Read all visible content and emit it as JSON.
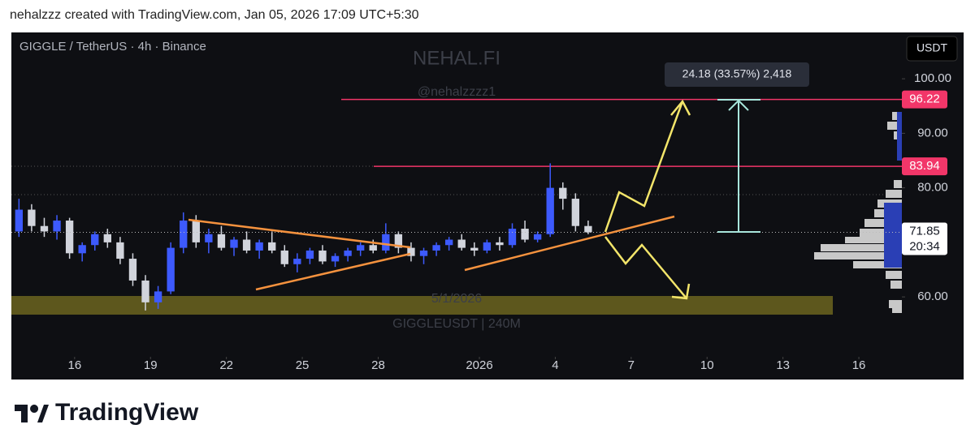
{
  "header": {
    "attribution": "nehalzzz created with TradingView.com, Jan 05, 2026 17:09 UTC+5:30"
  },
  "footer": {
    "brand": "TradingView"
  },
  "chart_data": {
    "type": "candlestick",
    "symbol": "GIGGLE / TetherUS · 4h · Binance",
    "currency_button": "USDT",
    "watermarks": [
      "NEHAL.FI",
      "@nehalzzzz1",
      "5/1/2026",
      "GIGGLEUSDT | 240M"
    ],
    "measure_label": "24.18 (33.57%) 2,418",
    "up_color": "#3d5afe",
    "down_color": "#d1d4dc",
    "x": [
      13.8,
      14.3,
      14.8,
      15.3,
      15.8,
      16.3,
      16.8,
      17.3,
      17.8,
      18.3,
      18.8,
      19.3,
      19.8,
      20.3,
      20.8,
      21.3,
      21.8,
      22.3,
      22.8,
      23.3,
      23.8,
      24.3,
      24.8,
      25.3,
      25.8,
      26.3,
      26.8,
      27.3,
      27.8,
      28.3,
      28.8,
      29.3,
      29.8,
      30.3,
      30.8,
      31.3,
      31.8,
      32.3,
      32.8,
      33.3,
      33.8,
      34.3,
      34.8,
      35.3,
      35.8,
      36.3
    ],
    "open": [
      72,
      76,
      73,
      72,
      74,
      68,
      69.5,
      71.5,
      70,
      67,
      63,
      59,
      61,
      69,
      74,
      70,
      71.5,
      69,
      70.5,
      68.5,
      70,
      68.5,
      66,
      67,
      68.5,
      66.5,
      67.5,
      68.5,
      69.5,
      68.5,
      71.5,
      69,
      67.5,
      68.5,
      69.5,
      70.5,
      69,
      68.5,
      70,
      69.5,
      72.5,
      70.5,
      71.5,
      80,
      78,
      73
    ],
    "high": [
      78,
      77,
      74.5,
      75,
      74.5,
      70,
      72,
      72.5,
      71,
      68,
      64,
      62,
      70,
      75.5,
      75,
      72.5,
      73,
      71,
      72,
      70.5,
      72,
      69.5,
      68,
      69,
      69.5,
      68,
      69,
      70,
      70.5,
      73.5,
      72,
      70,
      69,
      70,
      71,
      71.5,
      70,
      70.5,
      71,
      73.5,
      74,
      72,
      84.5,
      81,
      79,
      74
    ],
    "low": [
      71,
      72,
      71,
      70.5,
      67,
      66.5,
      68.5,
      69,
      66,
      62,
      57.5,
      57.8,
      60.5,
      68,
      69,
      68,
      68.5,
      67.5,
      68,
      67,
      68,
      65.5,
      64.5,
      66,
      66,
      65.5,
      66.5,
      67.5,
      68,
      68,
      68,
      66.5,
      66,
      67.5,
      68.5,
      68.5,
      67.5,
      68,
      68.5,
      69,
      70,
      70,
      71,
      76,
      72,
      71.5
    ],
    "close": [
      76,
      73,
      72,
      74,
      68,
      69.5,
      71.5,
      70,
      67,
      63,
      59,
      61,
      69,
      74,
      70,
      71.5,
      69,
      70.5,
      68.5,
      70,
      68.5,
      66,
      67,
      68.5,
      66.5,
      67.5,
      68.5,
      69.5,
      68.5,
      71.5,
      69,
      67.5,
      68.5,
      69.5,
      70.5,
      69,
      68.5,
      70,
      69.5,
      72.5,
      70.5,
      71.5,
      80,
      78,
      73,
      71.85
    ],
    "xlim": [
      13.5,
      48.7
    ],
    "xticks": [
      16,
      19,
      22,
      25,
      28,
      {
        "value": 32,
        "label": "2026"
      },
      {
        "value": 35,
        "label": "4"
      },
      {
        "value": 38,
        "label": "7"
      },
      {
        "value": 41,
        "label": "10"
      },
      {
        "value": 44,
        "label": "13"
      },
      {
        "value": 47,
        "label": "16"
      }
    ],
    "ylim": [
      50.5,
      108.5
    ],
    "yticks": [
      {
        "value": 60,
        "label": "60.00"
      },
      {
        "value": 80,
        "label": "80.00"
      },
      {
        "value": 90,
        "label": "90.00"
      },
      {
        "value": 100,
        "label": "100.00"
      }
    ],
    "price_levels": [
      {
        "value": 96.22,
        "label": "96.22",
        "color": "#f23669"
      },
      {
        "value": 83.94,
        "label": "83.94",
        "color": "#f23669"
      }
    ],
    "last_price": {
      "value": 71.85,
      "label": "71.85",
      "countdown": "20:34"
    }
  }
}
